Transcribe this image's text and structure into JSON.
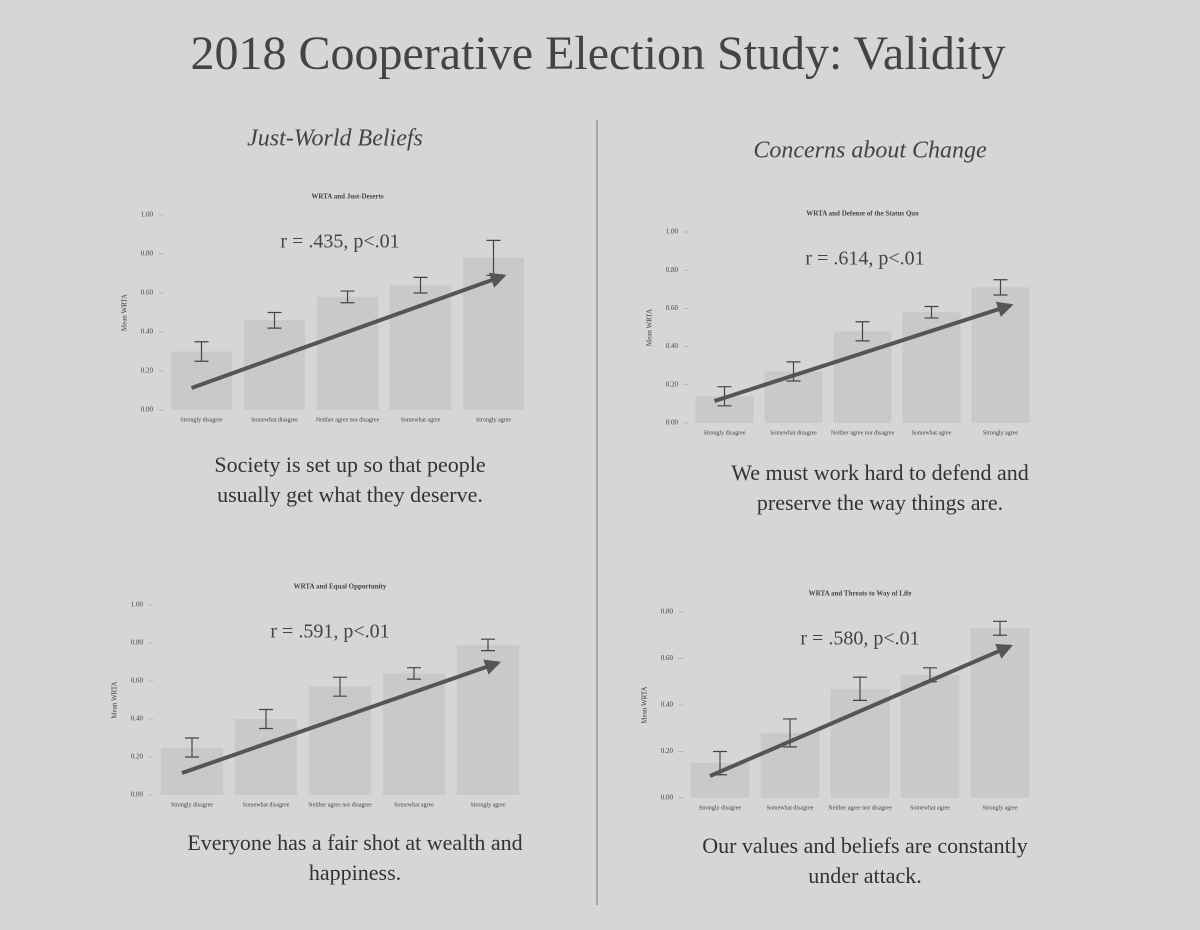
{
  "title": "2018 Cooperative Election Study: Validity",
  "sections": [
    "Just-World Beliefs",
    "Concerns about Change"
  ],
  "chart_data": [
    {
      "type": "bar",
      "title": "WRTA and Just-Deserts",
      "annotation": "r = .435, p<.01",
      "ylabel": "Mean WRTA",
      "caption": "Society is set up so that people usually get what they deserve.",
      "categories": [
        "Strongly disagree",
        "Somewhat disagree",
        "Neither agree nor disagree",
        "Somewhat agree",
        "Strongly agree"
      ],
      "values": [
        0.3,
        0.46,
        0.58,
        0.64,
        0.78
      ],
      "errors": [
        0.05,
        0.04,
        0.03,
        0.04,
        0.09
      ],
      "color": "#c9c9c9",
      "ylim": [
        0,
        1
      ],
      "yticks": [
        {
          "value": 0,
          "label": "0.00"
        },
        {
          "value": 0.2,
          "label": "0.20"
        },
        {
          "value": 0.4,
          "label": "0.40"
        },
        {
          "value": 0.6,
          "label": "0.60"
        },
        {
          "value": 0.8,
          "label": "0.80"
        },
        {
          "value": 1,
          "label": "1.00"
        }
      ]
    },
    {
      "type": "bar",
      "title": "WRTA and Defense of the Status Quo",
      "annotation": "r = .614, p<.01",
      "ylabel": "Mean WRTA",
      "caption": "We must work hard to defend and preserve the way things are.",
      "categories": [
        "Strongly disagree",
        "Somewhat disagree",
        "Neither agree nor disagree",
        "Somewhat agree",
        "Strongly agree"
      ],
      "values": [
        0.14,
        0.27,
        0.48,
        0.58,
        0.71
      ],
      "errors": [
        0.05,
        0.05,
        0.05,
        0.03,
        0.04
      ],
      "color": "#c9c9c9",
      "ylim": [
        0,
        1
      ],
      "yticks": [
        {
          "value": 0,
          "label": "0.00"
        },
        {
          "value": 0.2,
          "label": "0.20"
        },
        {
          "value": 0.4,
          "label": "0.40"
        },
        {
          "value": 0.6,
          "label": "0.60"
        },
        {
          "value": 0.8,
          "label": "0.80"
        },
        {
          "value": 1,
          "label": "1.00"
        }
      ]
    },
    {
      "type": "bar",
      "title": "WRTA and Equal Opportunity",
      "annotation": "r = .591, p<.01",
      "ylabel": "Mean WRTA",
      "caption": "Everyone has a fair shot at wealth and happiness.",
      "categories": [
        "Strongly disagree",
        "Somewhat disagree",
        "Neither agree nor disagree",
        "Somewhat agree",
        "Strongly agree"
      ],
      "values": [
        0.25,
        0.4,
        0.57,
        0.64,
        0.79
      ],
      "errors": [
        0.05,
        0.05,
        0.05,
        0.03,
        0.03
      ],
      "color": "#c9c9c9",
      "ylim": [
        0,
        1
      ],
      "yticks": [
        {
          "value": 0,
          "label": "0.00"
        },
        {
          "value": 0.2,
          "label": "0.20"
        },
        {
          "value": 0.4,
          "label": "0.40"
        },
        {
          "value": 0.6,
          "label": "0.60"
        },
        {
          "value": 0.8,
          "label": "0.80"
        },
        {
          "value": 1,
          "label": "1.00"
        }
      ]
    },
    {
      "type": "bar",
      "title": "WRTA and Threats to Way of Life",
      "annotation": "r = .580, p<.01",
      "ylabel": "Mean WRTA",
      "caption": "Our values and beliefs are constantly under attack.",
      "categories": [
        "Strongly disagree",
        "Somewhat disagree",
        "Neither agree nor disagree",
        "Somewhat agree",
        "Strongly agree"
      ],
      "values": [
        0.15,
        0.28,
        0.47,
        0.53,
        0.73
      ],
      "errors": [
        0.05,
        0.06,
        0.05,
        0.03,
        0.03
      ],
      "color": "#c9c9c9",
      "ylim": [
        0,
        0.8
      ],
      "yticks": [
        {
          "value": 0,
          "label": "0.00"
        },
        {
          "value": 0.2,
          "label": "0.20"
        },
        {
          "value": 0.4,
          "label": "0.40"
        },
        {
          "value": 0.6,
          "label": "0.60"
        },
        {
          "value": 0.8,
          "label": "0.80"
        }
      ]
    }
  ]
}
